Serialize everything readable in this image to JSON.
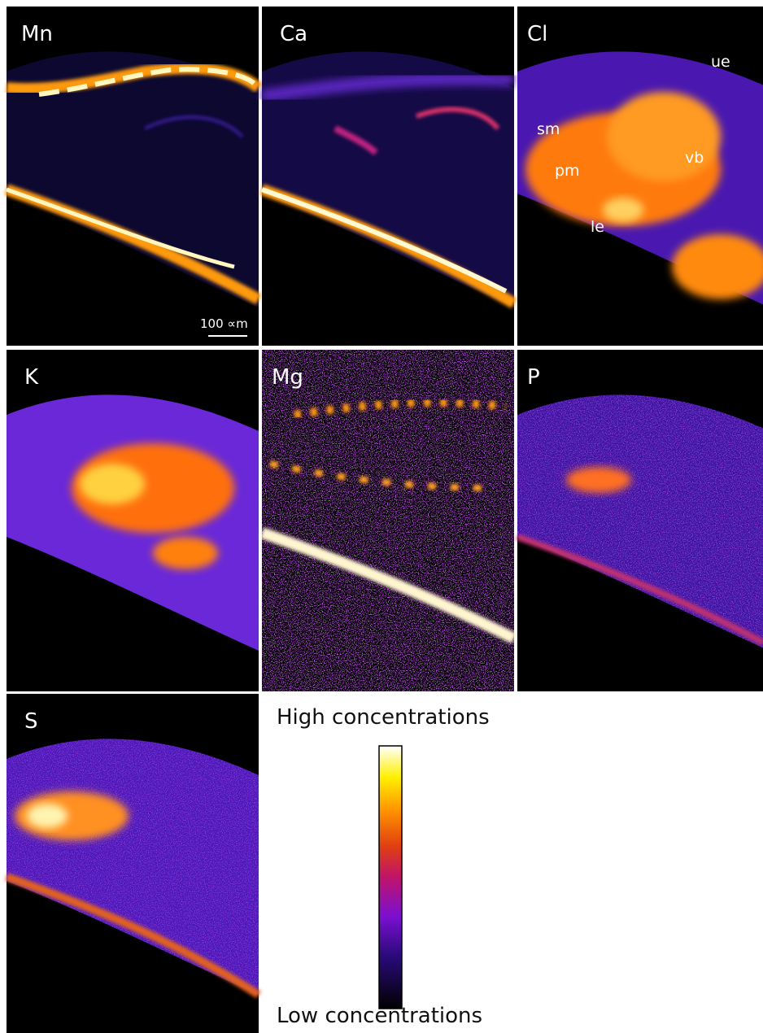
{
  "panels": [
    {
      "label": "Mn"
    },
    {
      "label": "Ca"
    },
    {
      "label": "Cl"
    },
    {
      "label": "K"
    },
    {
      "label": "Mg"
    },
    {
      "label": "P"
    },
    {
      "label": "S"
    }
  ],
  "scale_bar": {
    "label": "100 ∝m"
  },
  "annotations": [
    "ue",
    "sm",
    "vb",
    "pm",
    "le"
  ],
  "legend": {
    "high": "High concentrations",
    "low": "Low concentrations"
  }
}
